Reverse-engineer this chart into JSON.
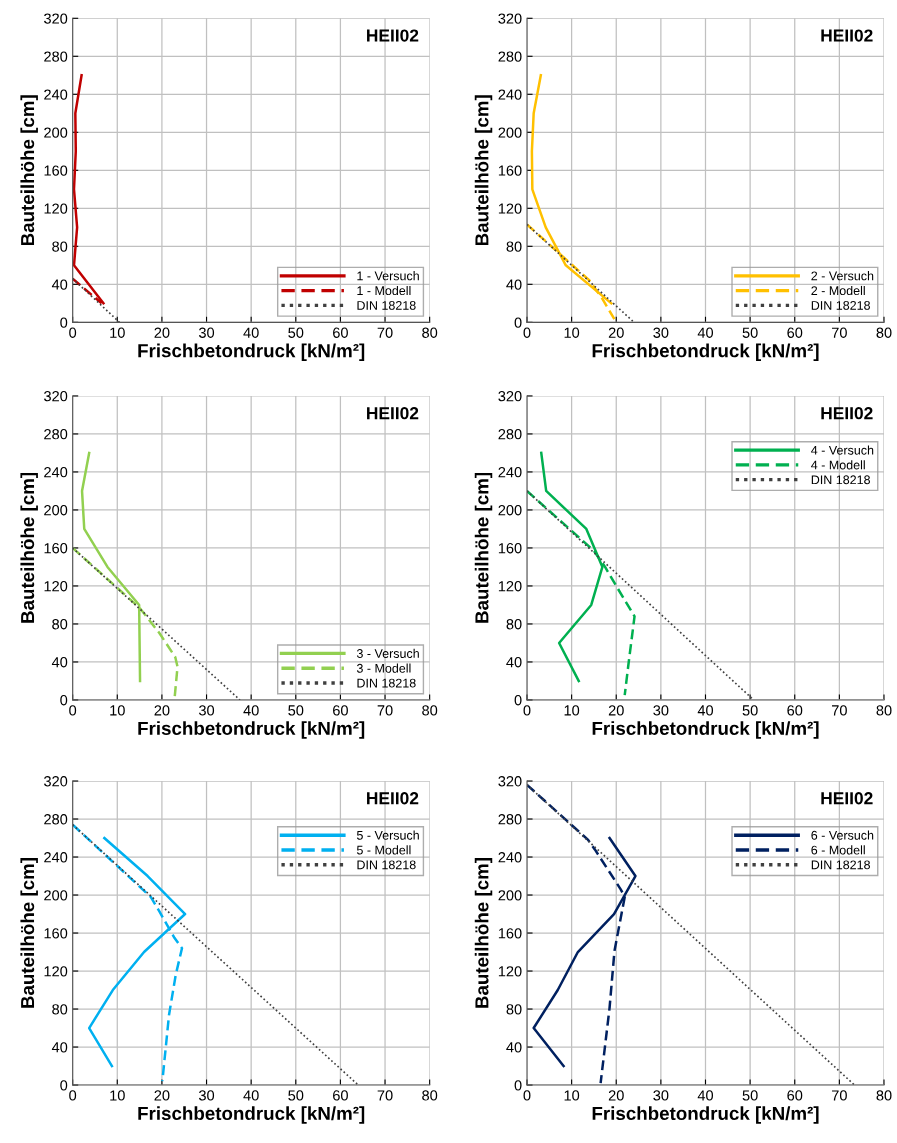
{
  "chart_data": [
    {
      "type": "line",
      "title": "HEII02",
      "xlabel": "Frischbetondruck [kN/m²]",
      "ylabel": "Bauteilhöhe [cm]",
      "xlim": [
        0,
        80
      ],
      "ylim": [
        0,
        320
      ],
      "xticks": [
        0,
        10,
        20,
        30,
        40,
        50,
        60,
        70,
        80
      ],
      "yticks": [
        0,
        40,
        80,
        120,
        160,
        200,
        240,
        280,
        320
      ],
      "grid": true,
      "legend": "bottom right",
      "series": [
        {
          "name": "1 - Versuch",
          "color": "#c00000",
          "line_style": "solid",
          "x": [
            2.0,
            0.6,
            0.7,
            0.3,
            1.0,
            0.3,
            6.9
          ],
          "values": [
            260,
            220,
            180,
            140,
            100,
            60,
            20
          ]
        },
        {
          "name": "1 - Modell",
          "color": "#c00000",
          "line_style": "dashed",
          "x": [
            0,
            6.5
          ],
          "values": [
            46,
            20
          ]
        },
        {
          "name": "DIN 18218",
          "color": "#404040",
          "line_style": "dotted",
          "x": [
            0,
            10.5
          ],
          "values": [
            46,
            0
          ]
        }
      ]
    },
    {
      "type": "line",
      "title": "HEII02",
      "xlabel": "Frischbetondruck [kN/m²]",
      "ylabel": "Bauteilhöhe [cm]",
      "xlim": [
        0,
        80
      ],
      "ylim": [
        0,
        320
      ],
      "xticks": [
        0,
        10,
        20,
        30,
        40,
        50,
        60,
        70,
        80
      ],
      "yticks": [
        0,
        40,
        80,
        120,
        160,
        200,
        240,
        280,
        320
      ],
      "grid": true,
      "legend": "bottom right",
      "series": [
        {
          "name": "2 - Versuch",
          "color": "#ffc000",
          "line_style": "solid",
          "x": [
            3.1,
            1.5,
            1.1,
            1.2,
            4.2,
            8.7,
            18.9
          ],
          "values": [
            260,
            220,
            180,
            140,
            100,
            60,
            20
          ]
        },
        {
          "name": "2 - Modell",
          "color": "#ffc000",
          "line_style": "dashed",
          "x": [
            0,
            14,
            17,
            20
          ],
          "values": [
            103,
            44,
            24,
            0
          ]
        },
        {
          "name": "DIN 18218",
          "color": "#404040",
          "line_style": "dotted",
          "x": [
            0,
            24
          ],
          "values": [
            103,
            0
          ]
        }
      ]
    },
    {
      "type": "line",
      "title": "HEII02",
      "xlabel": "Frischbetondruck [kN/m²]",
      "ylabel": "Bauteilhöhe [cm]",
      "xlim": [
        0,
        80
      ],
      "ylim": [
        0,
        320
      ],
      "xticks": [
        0,
        10,
        20,
        30,
        40,
        50,
        60,
        70,
        80
      ],
      "yticks": [
        0,
        40,
        80,
        120,
        160,
        200,
        240,
        280,
        320
      ],
      "grid": true,
      "legend": "bottom right",
      "series": [
        {
          "name": "3 - Versuch",
          "color": "#92d050",
          "line_style": "solid",
          "x": [
            3.7,
            2.1,
            2.6,
            7.8,
            14.9,
            15.1
          ],
          "values": [
            260,
            220,
            180,
            140,
            100,
            20
          ]
        },
        {
          "name": "3 - Modell",
          "color": "#92d050",
          "line_style": "dashed",
          "x": [
            0,
            15,
            19.5,
            23,
            23.5,
            22.8
          ],
          "values": [
            160,
            97,
            70,
            45,
            35,
            0
          ]
        },
        {
          "name": "DIN 18218",
          "color": "#404040",
          "line_style": "dotted",
          "x": [
            0,
            37.5
          ],
          "values": [
            160,
            0
          ]
        }
      ]
    },
    {
      "type": "line",
      "title": "HEII02",
      "xlabel": "Frischbetondruck [kN/m²]",
      "ylabel": "Bauteilhöhe [cm]",
      "xlim": [
        0,
        80
      ],
      "ylim": [
        0,
        320
      ],
      "xticks": [
        0,
        10,
        20,
        30,
        40,
        50,
        60,
        70,
        80
      ],
      "yticks": [
        0,
        40,
        80,
        120,
        160,
        200,
        240,
        280,
        320
      ],
      "grid": true,
      "legend": "top right",
      "series": [
        {
          "name": "4 - Versuch",
          "color": "#00b050",
          "line_style": "solid",
          "x": [
            3.2,
            4.3,
            13.3,
            16.9,
            14.4,
            7.2,
            11.6
          ],
          "values": [
            260,
            220,
            180,
            140,
            100,
            60,
            20
          ]
        },
        {
          "name": "4 - Modell",
          "color": "#00b050",
          "line_style": "dashed",
          "x": [
            0,
            15,
            17.5,
            20,
            24.1,
            22.8,
            21.9
          ],
          "values": [
            220,
            157,
            140,
            120,
            88,
            40,
            5
          ]
        },
        {
          "name": "DIN 18218",
          "color": "#404040",
          "line_style": "dotted",
          "x": [
            0,
            50.8
          ],
          "values": [
            220,
            0
          ]
        }
      ]
    },
    {
      "type": "line",
      "title": "HEII02",
      "xlabel": "Frischbetondruck [kN/m²]",
      "ylabel": "Bauteilhöhe [cm]",
      "xlim": [
        0,
        80
      ],
      "ylim": [
        0,
        320
      ],
      "xticks": [
        0,
        10,
        20,
        30,
        40,
        50,
        60,
        70,
        80
      ],
      "yticks": [
        0,
        40,
        80,
        120,
        160,
        200,
        240,
        280,
        320
      ],
      "grid": true,
      "legend": "top right",
      "series": [
        {
          "name": "5 - Versuch",
          "color": "#00b0f0",
          "line_style": "solid",
          "x": [
            7.1,
            16.8,
            25.2,
            16.0,
            9.0,
            3.7,
            8.8
          ],
          "values": [
            260,
            220,
            180,
            140,
            100,
            60,
            20
          ]
        },
        {
          "name": "5 - Modell",
          "color": "#00b0f0",
          "line_style": "dashed",
          "x": [
            0,
            17.5,
            19.4,
            22.8,
            24.5,
            23.1,
            21.6,
            20.1
          ],
          "values": [
            274,
            198,
            183,
            155,
            144,
            116,
            74,
            4
          ]
        },
        {
          "name": "DIN 18218",
          "color": "#404040",
          "line_style": "dotted",
          "x": [
            0,
            64
          ],
          "values": [
            274,
            0
          ]
        }
      ]
    },
    {
      "type": "line",
      "title": "HEII02",
      "xlabel": "Frischbetondruck [kN/m²]",
      "ylabel": "Bauteilhöhe [cm]",
      "xlim": [
        0,
        80
      ],
      "ylim": [
        0,
        320
      ],
      "xticks": [
        0,
        10,
        20,
        30,
        40,
        50,
        60,
        70,
        80
      ],
      "yticks": [
        0,
        40,
        80,
        120,
        160,
        200,
        240,
        280,
        320
      ],
      "grid": true,
      "legend": "top right",
      "series": [
        {
          "name": "6 - Versuch",
          "color": "#002060",
          "line_style": "solid",
          "x": [
            18.5,
            24.3,
            21.9,
            19.5,
            11.4,
            6.9,
            1.5,
            8.2
          ],
          "values": [
            260,
            220,
            200,
            180,
            140,
            100,
            60,
            20
          ]
        },
        {
          "name": "6 - Modell",
          "color": "#002060",
          "line_style": "dashed",
          "x": [
            0,
            13.7,
            15.2,
            21,
            21.9,
            19.6,
            18.5,
            16.5
          ],
          "values": [
            316,
            258,
            248,
            206,
            198,
            141,
            81,
            2
          ]
        },
        {
          "name": "DIN 18218",
          "color": "#404040",
          "line_style": "dotted",
          "x": [
            0,
            73.4
          ],
          "values": [
            316,
            0
          ]
        }
      ]
    }
  ]
}
